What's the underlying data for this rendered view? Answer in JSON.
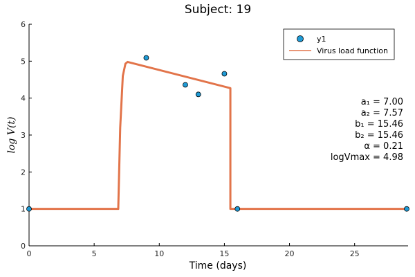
{
  "chart_data": {
    "type": "line",
    "title": "Subject: 19",
    "xlabel": "Time (days)",
    "ylabel": "log V(t)",
    "xlim": [
      0,
      29
    ],
    "ylim": [
      0,
      6
    ],
    "xticks": [
      0,
      5,
      10,
      15,
      20,
      25
    ],
    "yticks": [
      0,
      1,
      2,
      3,
      4,
      5,
      6
    ],
    "grid": false,
    "legend_position": "top-right",
    "series": [
      {
        "name": "y1",
        "kind": "scatter",
        "color": "#1f9bd6",
        "x": [
          0,
          9,
          12,
          13,
          15,
          16,
          29
        ],
        "y": [
          1.0,
          5.09,
          4.36,
          4.1,
          4.66,
          1.0,
          1.0
        ]
      },
      {
        "name": "Virus load function",
        "kind": "line",
        "color": "#e2744a",
        "x": [
          0,
          6.85,
          7.0,
          7.2,
          7.4,
          7.57,
          15.46,
          15.46,
          29
        ],
        "y": [
          1.0,
          1.0,
          3.2,
          4.6,
          4.93,
          4.98,
          4.27,
          1.0,
          1.0
        ]
      }
    ],
    "annotations": [
      "a₁ = 7.00",
      "a₂ = 7.57",
      "b₁ = 15.46",
      "b₂ = 15.46",
      "α = 0.21",
      "logVmax = 4.98"
    ]
  }
}
